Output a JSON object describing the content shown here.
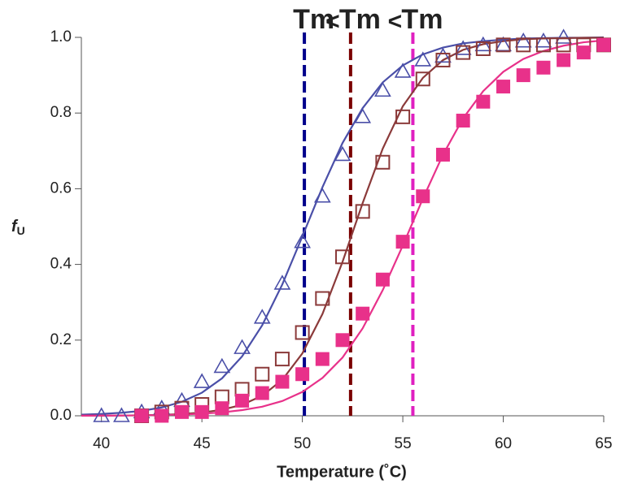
{
  "chart_data": {
    "type": "scatter",
    "x_label": "Temperature (˚C)",
    "y_label": {
      "main": "f",
      "sub": "U"
    },
    "xlim": [
      39,
      65
    ],
    "xticks": [
      40,
      45,
      50,
      55,
      60,
      65
    ],
    "ylim": [
      0,
      1
    ],
    "yticks": [
      {
        "value": 0,
        "label": "0.0"
      },
      0.2,
      0.4,
      0.6,
      0.8,
      {
        "value": 1,
        "label": "1.0"
      }
    ],
    "series": [
      {
        "color": "#4a4fa8",
        "marker": "triangle-open",
        "x": [
          40,
          41,
          42,
          43,
          44,
          45,
          46,
          47,
          48,
          49,
          50,
          51,
          52,
          53,
          54,
          55,
          56,
          57,
          58,
          59,
          60,
          61,
          62,
          63
        ],
        "values": [
          0.0,
          0.0,
          0.01,
          0.02,
          0.04,
          0.09,
          0.13,
          0.18,
          0.26,
          0.35,
          0.46,
          0.58,
          0.69,
          0.79,
          0.86,
          0.91,
          0.94,
          0.95,
          0.97,
          0.98,
          0.98,
          0.99,
          0.99,
          1.0
        ]
      },
      {
        "color": "#8b3a3a",
        "marker": "square-open",
        "x": [
          42,
          43,
          44,
          45,
          46,
          47,
          48,
          49,
          50,
          51,
          52,
          53,
          54,
          55,
          56,
          57,
          58,
          59,
          60,
          61,
          62,
          63,
          64,
          65
        ],
        "values": [
          0.0,
          0.01,
          0.02,
          0.03,
          0.05,
          0.07,
          0.11,
          0.15,
          0.22,
          0.31,
          0.42,
          0.54,
          0.67,
          0.79,
          0.89,
          0.94,
          0.96,
          0.97,
          0.98,
          0.98,
          0.98,
          0.98,
          0.98,
          0.98
        ]
      },
      {
        "color": "#e8318a",
        "marker": "square-filled",
        "x": [
          42,
          43,
          44,
          45,
          46,
          47,
          48,
          49,
          50,
          51,
          52,
          53,
          54,
          55,
          56,
          57,
          58,
          59,
          60,
          61,
          62,
          63,
          64,
          65
        ],
        "values": [
          0.0,
          0.0,
          0.01,
          0.01,
          0.02,
          0.04,
          0.06,
          0.09,
          0.11,
          0.15,
          0.2,
          0.27,
          0.36,
          0.46,
          0.58,
          0.69,
          0.78,
          0.83,
          0.87,
          0.9,
          0.92,
          0.94,
          0.96,
          0.98
        ]
      }
    ],
    "fit_curves": [
      {
        "color": "#4a4fa8",
        "x": [
          39,
          40,
          41,
          42,
          43,
          44,
          45,
          46,
          47,
          48,
          49,
          50,
          51,
          52,
          53,
          54,
          55,
          56,
          57,
          58,
          59,
          60,
          61,
          62,
          63,
          64,
          65
        ],
        "values": [
          0.003,
          0.005,
          0.008,
          0.013,
          0.022,
          0.037,
          0.061,
          0.099,
          0.157,
          0.239,
          0.347,
          0.474,
          0.604,
          0.721,
          0.813,
          0.881,
          0.926,
          0.955,
          0.973,
          0.984,
          0.99,
          0.994,
          0.997,
          0.998,
          0.999,
          0.999,
          1.0
        ]
      },
      {
        "color": "#8b3a3a",
        "x": [
          39,
          40,
          41,
          42,
          43,
          44,
          45,
          46,
          47,
          48,
          49,
          50,
          51,
          52,
          53,
          54,
          55,
          56,
          57,
          58,
          59,
          60,
          61,
          62,
          63,
          64,
          65
        ],
        "values": [
          0.0002,
          0.0004,
          0.0007,
          0.0013,
          0.0025,
          0.0046,
          0.0086,
          0.016,
          0.029,
          0.053,
          0.095,
          0.165,
          0.269,
          0.407,
          0.562,
          0.706,
          0.818,
          0.893,
          0.94,
          0.967,
          0.982,
          0.99,
          0.995,
          0.997,
          0.998,
          0.999,
          0.999
        ]
      },
      {
        "color": "#e8318a",
        "x": [
          39,
          40,
          41,
          42,
          43,
          44,
          45,
          46,
          47,
          48,
          49,
          50,
          51,
          52,
          53,
          54,
          55,
          56,
          57,
          58,
          59,
          60,
          61,
          62,
          63,
          64,
          65
        ],
        "values": [
          0.0003,
          0.0005,
          0.0007,
          0.0012,
          0.002,
          0.0033,
          0.0055,
          0.009,
          0.015,
          0.024,
          0.039,
          0.063,
          0.1,
          0.154,
          0.231,
          0.332,
          0.45,
          0.574,
          0.69,
          0.786,
          0.858,
          0.909,
          0.943,
          0.964,
          0.978,
          0.987,
          0.992
        ]
      }
    ],
    "tm_lines": [
      {
        "x": 50.1,
        "color": "#00008b",
        "label_color": "#1a1aff",
        "label": "Tm"
      },
      {
        "x": 52.4,
        "color": "#7a0000",
        "label_color": "#8b0000",
        "label": "Tm"
      },
      {
        "x": 55.5,
        "color": "#e020c0",
        "label_color": "#ff33cc",
        "label": "Tm"
      }
    ],
    "tm_separators": [
      "<",
      "<"
    ]
  }
}
